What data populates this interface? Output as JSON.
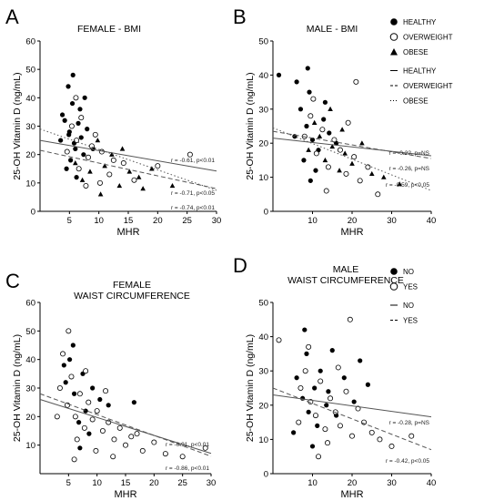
{
  "chart_data": [
    {
      "type": "scatter",
      "panel_letter": "A",
      "title": "FEMALE - BMI",
      "xlabel": "MHR",
      "ylabel": "25-OH Vitamin D (ng/mL)",
      "xlim": [
        0,
        30
      ],
      "ylim": [
        0,
        60
      ],
      "xticks": [
        5,
        10,
        15,
        20,
        25,
        30
      ],
      "yticks": [
        0,
        10,
        20,
        30,
        40,
        50,
        60
      ],
      "series": [
        {
          "name": "HEALTHY",
          "marker": "filled-circle",
          "points": [
            [
              4.2,
              32
            ],
            [
              5,
              28
            ],
            [
              5.5,
              38
            ],
            [
              6,
              22
            ],
            [
              4.8,
              44
            ],
            [
              6.5,
              31
            ],
            [
              7,
              26
            ],
            [
              5.2,
              18
            ],
            [
              3.5,
              25
            ],
            [
              6.8,
              36
            ],
            [
              5.6,
              48
            ],
            [
              7.4,
              20
            ],
            [
              4.5,
              15
            ],
            [
              8,
              29
            ],
            [
              6.2,
              12
            ],
            [
              5.8,
              24
            ],
            [
              3.8,
              34
            ],
            [
              7.6,
              40
            ],
            [
              4.9,
              27
            ],
            [
              9,
              22
            ]
          ]
        },
        {
          "name": "OVERWEIGHT",
          "marker": "open-circle",
          "points": [
            [
              5.4,
              30
            ],
            [
              6.2,
              25
            ],
            [
              7,
              33
            ],
            [
              8.2,
              19
            ],
            [
              6.6,
              15
            ],
            [
              9.4,
              27
            ],
            [
              10.5,
              21
            ],
            [
              11.8,
              13
            ],
            [
              7.8,
              9
            ],
            [
              12.5,
              18
            ],
            [
              6.1,
              40
            ],
            [
              14.2,
              17
            ],
            [
              8.8,
              23
            ],
            [
              20,
              16
            ],
            [
              25.5,
              20
            ],
            [
              10.2,
              10
            ],
            [
              16,
              11
            ],
            [
              4.6,
              21
            ]
          ]
        },
        {
          "name": "OBESE",
          "marker": "filled-triangle",
          "points": [
            [
              6,
              17
            ],
            [
              8.5,
              14
            ],
            [
              9.8,
              25
            ],
            [
              11,
              16
            ],
            [
              12.2,
              20
            ],
            [
              13.5,
              9
            ],
            [
              15.2,
              14
            ],
            [
              16.8,
              12
            ],
            [
              10.3,
              6
            ],
            [
              17.5,
              8
            ],
            [
              22.5,
              9
            ],
            [
              7.2,
              11
            ],
            [
              14,
              22
            ],
            [
              19,
              15
            ]
          ]
        }
      ],
      "fit_lines": [
        {
          "name": "HEALTHY",
          "dash": "solid",
          "intercept": 25,
          "slope": -0.36
        },
        {
          "name": "OVERWEIGHT",
          "dash": "dashed",
          "intercept": 21.5,
          "slope": -0.45
        },
        {
          "name": "OBESE",
          "dash": "dotted",
          "intercept": 29,
          "slope": -0.72
        }
      ],
      "annotations": [
        "r = -0.61, p<0.01",
        "r = -0.71, p<0.05",
        "r = -0.74, p<0.01"
      ]
    },
    {
      "type": "scatter",
      "panel_letter": "B",
      "title": "MALE - BMI",
      "xlabel": "MHR",
      "ylabel": "25-OH Vitamin D (ng/mL)",
      "xlim": [
        0,
        40
      ],
      "ylim": [
        0,
        50
      ],
      "xticks": [
        10,
        20,
        30,
        40
      ],
      "yticks": [
        0,
        10,
        20,
        30,
        40,
        50
      ],
      "series": [
        {
          "name": "HEALTHY",
          "marker": "filled-circle",
          "points": [
            [
              7,
              30
            ],
            [
              8.5,
              25
            ],
            [
              6,
              38
            ],
            [
              10,
              21
            ],
            [
              9.2,
              35
            ],
            [
              11.5,
              18
            ],
            [
              12.8,
              27
            ],
            [
              5.5,
              22
            ],
            [
              7.8,
              15
            ],
            [
              14.2,
              23
            ],
            [
              8.8,
              42
            ],
            [
              10.8,
              12
            ],
            [
              16,
              20
            ],
            [
              13.2,
              32
            ],
            [
              1.5,
              40
            ],
            [
              9.5,
              9
            ]
          ]
        },
        {
          "name": "OVERWEIGHT",
          "marker": "open-circle",
          "points": [
            [
              8,
              22
            ],
            [
              9.5,
              28
            ],
            [
              11,
              17
            ],
            [
              12.5,
              24
            ],
            [
              14,
              13
            ],
            [
              15.5,
              21
            ],
            [
              10.2,
              33
            ],
            [
              17,
              18
            ],
            [
              18.5,
              11
            ],
            [
              20.5,
              16
            ],
            [
              22,
              9
            ],
            [
              13.5,
              6
            ],
            [
              19,
              26
            ],
            [
              24,
              13
            ],
            [
              26.5,
              5
            ],
            [
              21,
              38
            ]
          ]
        },
        {
          "name": "OBESE",
          "marker": "filled-triangle",
          "points": [
            [
              9,
              18
            ],
            [
              11.8,
              22
            ],
            [
              13.2,
              15
            ],
            [
              15,
              19
            ],
            [
              16.8,
              12
            ],
            [
              18.2,
              17
            ],
            [
              10.5,
              26
            ],
            [
              20,
              14
            ],
            [
              22.5,
              20
            ],
            [
              25,
              11
            ],
            [
              14.5,
              30
            ],
            [
              28,
              10
            ],
            [
              32,
              8
            ],
            [
              17.5,
              24
            ]
          ]
        }
      ],
      "fit_lines": [
        {
          "name": "HEALTHY",
          "dash": "solid",
          "intercept": 21.5,
          "slope": -0.13
        },
        {
          "name": "OVERWEIGHT",
          "dash": "dashed",
          "intercept": 23.5,
          "slope": -0.2
        },
        {
          "name": "OBESE",
          "dash": "dotted",
          "intercept": 24.5,
          "slope": -0.46
        }
      ],
      "annotations": [
        "r = -0.22, p=NS",
        "r = -0.26, p=NS",
        "r = -0.59, p<0.05"
      ],
      "legend": {
        "placement": "right",
        "markers": [
          {
            "label": "HEALTHY",
            "marker": "filled-circle"
          },
          {
            "label": "OVERWEIGHT",
            "marker": "open-circle"
          },
          {
            "label": "OBESE",
            "marker": "filled-triangle"
          }
        ],
        "lines": [
          {
            "label": "HEALTHY",
            "dash": "solid"
          },
          {
            "label": "OVERWEIGHT",
            "dash": "dashed"
          },
          {
            "label": "OBESE",
            "dash": "dotted"
          }
        ]
      }
    },
    {
      "type": "scatter",
      "panel_letter": "C",
      "title": "FEMALE\nWAIST CIRCUMFERENCE",
      "xlabel": "MHR",
      "ylabel": "25-OH Vitamin D (ng/mL)",
      "xlim": [
        0,
        30
      ],
      "ylim": [
        0,
        60
      ],
      "xticks": [
        5,
        10,
        15,
        20,
        25,
        30
      ],
      "yticks": [
        10,
        20,
        30,
        40,
        50,
        60
      ],
      "series": [
        {
          "name": "NO",
          "marker": "filled-circle",
          "points": [
            [
              4.5,
              32
            ],
            [
              5.2,
              40
            ],
            [
              6,
              28
            ],
            [
              7.5,
              35
            ],
            [
              8,
              22
            ],
            [
              6.8,
              18
            ],
            [
              9.2,
              30
            ],
            [
              5.8,
              45
            ],
            [
              10.5,
              26
            ],
            [
              8.6,
              14
            ],
            [
              7,
              9
            ],
            [
              12,
              24
            ],
            [
              4.2,
              38
            ],
            [
              16.5,
              25
            ]
          ]
        },
        {
          "name": "YES",
          "marker": "open-circle",
          "points": [
            [
              3.5,
              30
            ],
            [
              4.8,
              24
            ],
            [
              5.5,
              34
            ],
            [
              6.2,
              20
            ],
            [
              7,
              28
            ],
            [
              7.8,
              16
            ],
            [
              8.5,
              25
            ],
            [
              9.2,
              19
            ],
            [
              10,
              22
            ],
            [
              11,
              15
            ],
            [
              12,
              18
            ],
            [
              13,
              12
            ],
            [
              14,
              16
            ],
            [
              15,
              10
            ],
            [
              16,
              13
            ],
            [
              18,
              8
            ],
            [
              20,
              11
            ],
            [
              22,
              7
            ],
            [
              25,
              6
            ],
            [
              29,
              9
            ],
            [
              5,
              50
            ],
            [
              6.5,
              12
            ],
            [
              9.8,
              8
            ],
            [
              4,
              42
            ],
            [
              11.5,
              29
            ],
            [
              17,
              14
            ],
            [
              8,
              36
            ],
            [
              12.8,
              6
            ],
            [
              6,
              5
            ],
            [
              3,
              20
            ]
          ]
        }
      ],
      "fit_lines": [
        {
          "name": "NO",
          "dash": "solid",
          "intercept": 26,
          "slope": -0.63
        },
        {
          "name": "YES",
          "dash": "dashed",
          "intercept": 28,
          "slope": -0.73
        }
      ],
      "annotations": [
        "r = -0.91, p<0.01",
        "r = -0.86, p<0.01"
      ]
    },
    {
      "type": "scatter",
      "panel_letter": "D",
      "title": "MALE\nWAIST CIRCUMFERENCE",
      "xlabel": "MHR",
      "ylabel": "25-OH Vitamin D (ng/mL)",
      "xlim": [
        0,
        40
      ],
      "ylim": [
        0,
        50
      ],
      "xticks": [
        10,
        20,
        30,
        40
      ],
      "yticks": [
        0,
        10,
        20,
        30,
        40,
        50
      ],
      "series": [
        {
          "name": "NO",
          "marker": "filled-circle",
          "points": [
            [
              6,
              28
            ],
            [
              7.5,
              22
            ],
            [
              8.5,
              35
            ],
            [
              9,
              18
            ],
            [
              10.5,
              25
            ],
            [
              11.2,
              14
            ],
            [
              12,
              30
            ],
            [
              13.5,
              20
            ],
            [
              5.2,
              12
            ],
            [
              8,
              42
            ],
            [
              14,
              24
            ],
            [
              16,
              17
            ],
            [
              18,
              28
            ],
            [
              20.5,
              21
            ],
            [
              22,
              33
            ],
            [
              10,
              8
            ],
            [
              15,
              36
            ],
            [
              24,
              26
            ]
          ]
        },
        {
          "name": "YES",
          "marker": "open-circle",
          "points": [
            [
              7,
              25
            ],
            [
              8.2,
              30
            ],
            [
              9.5,
              21
            ],
            [
              10.8,
              17
            ],
            [
              12,
              27
            ],
            [
              13.2,
              13
            ],
            [
              14.5,
              22
            ],
            [
              15.8,
              18
            ],
            [
              17,
              14
            ],
            [
              18.5,
              24
            ],
            [
              20,
              11
            ],
            [
              21.5,
              19
            ],
            [
              23,
              15
            ],
            [
              25,
              12
            ],
            [
              27,
              10
            ],
            [
              30,
              8
            ],
            [
              35,
              11
            ],
            [
              9,
              37
            ],
            [
              11.5,
              5
            ],
            [
              16.5,
              31
            ],
            [
              1.5,
              39
            ],
            [
              19.5,
              45
            ],
            [
              6.5,
              15
            ],
            [
              13.8,
              9
            ]
          ]
        }
      ],
      "fit_lines": [
        {
          "name": "NO",
          "dash": "solid",
          "intercept": 23,
          "slope": -0.16
        },
        {
          "name": "YES",
          "dash": "dashed",
          "intercept": 25,
          "slope": -0.45
        }
      ],
      "annotations": [
        "r = -0.28, p=NS",
        "r = -0.42, p<0.05"
      ],
      "legend": {
        "placement": "right",
        "markers": [
          {
            "label": "NO",
            "marker": "filled-circle"
          },
          {
            "label": "YES",
            "marker": "open-circle"
          }
        ],
        "lines": [
          {
            "label": "NO",
            "dash": "solid"
          },
          {
            "label": "YES",
            "dash": "dashed"
          }
        ]
      }
    }
  ]
}
